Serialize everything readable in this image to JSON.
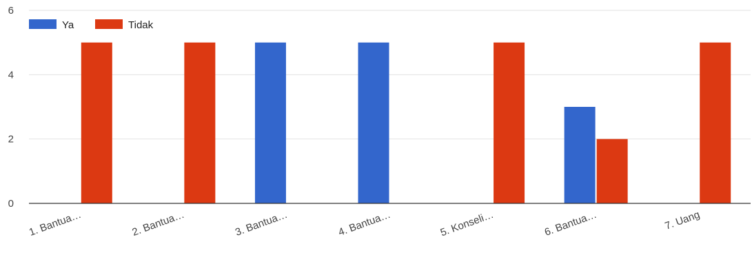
{
  "chart_data": {
    "type": "bar",
    "categories": [
      "1. Bantua…",
      "2. Bantua…",
      "3. Bantua…",
      "4. Bantua…",
      "5. Konseli…",
      "6. Bantua…",
      "7. Uang"
    ],
    "series": [
      {
        "name": "Ya",
        "values": [
          0,
          0,
          5,
          5,
          0,
          3,
          0
        ],
        "color": "#3366cc"
      },
      {
        "name": "Tidak",
        "values": [
          5,
          5,
          0,
          0,
          5,
          2,
          5
        ],
        "color": "#dc3912"
      }
    ],
    "title": "",
    "xlabel": "",
    "ylabel": "",
    "ylim": [
      0,
      6
    ],
    "yticks": [
      0,
      2,
      4,
      6
    ],
    "grid": true,
    "legend_position": "top-left"
  }
}
